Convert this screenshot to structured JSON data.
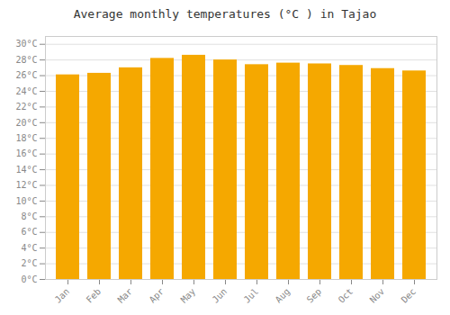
{
  "chart_data": {
    "type": "bar",
    "title": "Average monthly temperatures (°C ) in Tajao",
    "categories": [
      "Jan",
      "Feb",
      "Mar",
      "Apr",
      "May",
      "Jun",
      "Jul",
      "Aug",
      "Sep",
      "Oct",
      "Nov",
      "Dec"
    ],
    "values": [
      26.1,
      26.3,
      27.0,
      28.2,
      28.6,
      28.0,
      27.4,
      27.6,
      27.5,
      27.3,
      26.9,
      26.6
    ],
    "color": "#F5A800",
    "ylim": [
      0,
      31
    ],
    "yticks": [
      {
        "value": 0,
        "label": "0°C"
      },
      {
        "value": 2,
        "label": "2°C"
      },
      {
        "value": 4,
        "label": "4°C"
      },
      {
        "value": 6,
        "label": "6°C"
      },
      {
        "value": 8,
        "label": "8°C"
      },
      {
        "value": 10,
        "label": "10°C"
      },
      {
        "value": 12,
        "label": "12°C"
      },
      {
        "value": 14,
        "label": "14°C"
      },
      {
        "value": 16,
        "label": "16°C"
      },
      {
        "value": 18,
        "label": "18°C"
      },
      {
        "value": 20,
        "label": "20°C"
      },
      {
        "value": 22,
        "label": "22°C"
      },
      {
        "value": 24,
        "label": "24°C"
      },
      {
        "value": 26,
        "label": "26°C"
      },
      {
        "value": 28,
        "label": "28°C"
      },
      {
        "value": 30,
        "label": "30°C"
      }
    ],
    "grid": true
  }
}
